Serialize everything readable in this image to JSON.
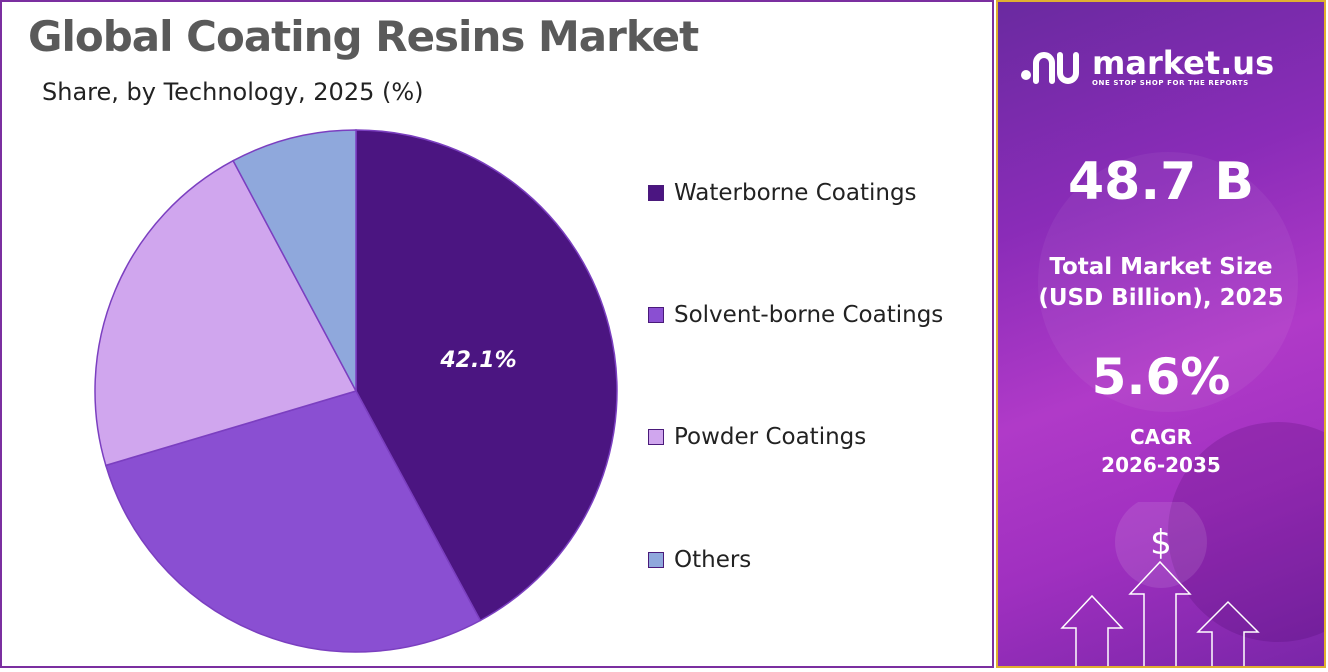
{
  "title": "Global Coating Resins Market",
  "subtitle": "Share, by Technology, 2025 (%)",
  "colors": {
    "waterborne": "#4b1581",
    "solvent_borne": "#8a4fd2",
    "powder": "#d0a6ee",
    "others": "#8fa8dc",
    "accent_border": "#7b2fa0",
    "panel_border": "#e0b030"
  },
  "chart_data": {
    "type": "pie",
    "title": "Global Coating Resins Market",
    "subtitle": "Share, by Technology, 2025 (%)",
    "categories": [
      "Waterborne Coatings",
      "Solvent-borne Coatings",
      "Powder Coatings",
      "Others"
    ],
    "values": [
      42.1,
      28.3,
      21.8,
      7.8
    ],
    "data_labels": [
      "42.1%",
      "",
      "",
      ""
    ],
    "legend_placement": "right",
    "start_angle": "12 o'clock, clockwise"
  },
  "legend": [
    {
      "label": "Waterborne Coatings"
    },
    {
      "label": "Solvent-borne Coatings"
    },
    {
      "label": "Powder Coatings"
    },
    {
      "label": "Others"
    }
  ],
  "info_panel": {
    "brand": "market.us",
    "tagline": "ONE STOP SHOP FOR THE REPORTS",
    "market_size": "48.7 B",
    "market_size_label_1": "Total Market Size",
    "market_size_label_2": "(USD Billion), 2025",
    "cagr_value": "5.6%",
    "cagr_label": "CAGR",
    "cagr_period": "2026-2035",
    "icons": [
      "brand-logo-icon",
      "dollar-coin-icon",
      "up-arrow-icon"
    ]
  }
}
